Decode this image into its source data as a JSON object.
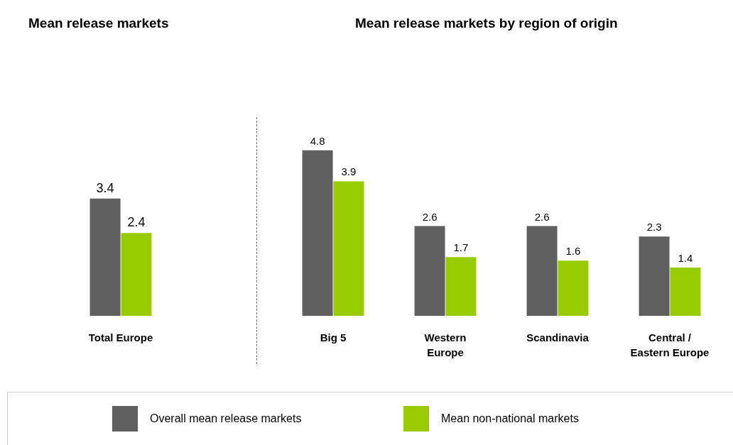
{
  "chart_data": [
    {
      "type": "bar",
      "title": "Mean release markets",
      "categories": [
        "Total Europe"
      ],
      "data_labels": true,
      "legend": "bottom",
      "series": [
        {
          "name": "Overall mean release markets",
          "color": "#5f5f5f",
          "values": [
            3.4
          ]
        },
        {
          "name": "Mean non-national markets",
          "color": "#99cc00",
          "values": [
            2.4
          ]
        }
      ]
    },
    {
      "type": "bar",
      "title": "Mean release markets by region of origin",
      "categories": [
        "Big 5",
        "Western\nEurope",
        "Scandinavia",
        "Central /\nEastern Europe"
      ],
      "data_labels": true,
      "series": [
        {
          "color": "#5f5f5f",
          "values": [
            4.8,
            2.6,
            2.6,
            2.3
          ]
        },
        {
          "color": "#99cc00",
          "values": [
            3.9,
            1.7,
            1.6,
            1.4
          ]
        }
      ]
    }
  ]
}
